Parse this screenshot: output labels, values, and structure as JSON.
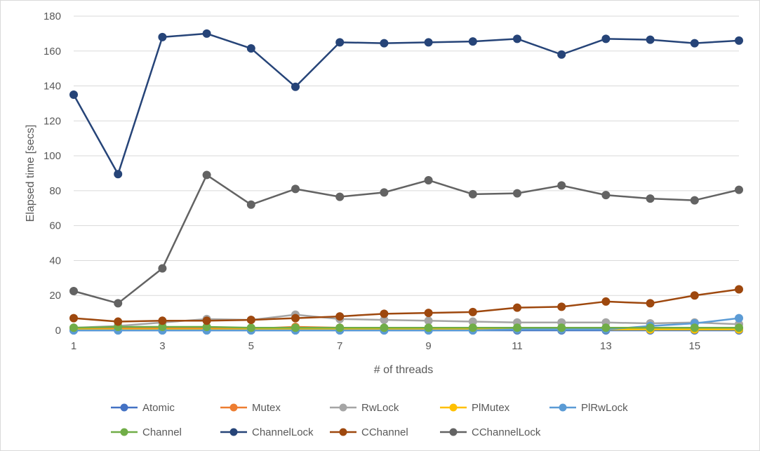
{
  "chart_data": {
    "type": "line",
    "title": "",
    "xlabel": "# of threads",
    "ylabel": "Elapsed time [secs]",
    "xlim": [
      1,
      16
    ],
    "ylim": [
      0,
      180
    ],
    "x_ticks": [
      1,
      3,
      5,
      7,
      9,
      11,
      13,
      15
    ],
    "y_ticks": [
      0,
      20,
      40,
      60,
      80,
      100,
      120,
      140,
      160,
      180
    ],
    "grid": "horizontal",
    "legend_position": "bottom",
    "x": [
      1,
      2,
      3,
      4,
      5,
      6,
      7,
      8,
      9,
      10,
      11,
      12,
      13,
      14,
      15,
      16
    ],
    "series": [
      {
        "name": "Atomic",
        "color": "#4472c4",
        "values": [
          0,
          0,
          0,
          0,
          0,
          0,
          0,
          0,
          0,
          0,
          0,
          0,
          0,
          0,
          0,
          0
        ]
      },
      {
        "name": "Mutex",
        "color": "#ed7d31",
        "values": [
          1,
          1.5,
          1.5,
          1.5,
          1,
          2,
          1.5,
          1,
          1,
          1,
          1,
          1,
          1,
          1,
          1,
          1
        ]
      },
      {
        "name": "RwLock",
        "color": "#a5a5a5",
        "values": [
          1.5,
          2.5,
          4.5,
          6.5,
          6,
          9,
          6.5,
          6,
          5.5,
          5,
          4.5,
          4.5,
          4.5,
          4,
          4.5,
          3.5
        ]
      },
      {
        "name": "PlMutex",
        "color": "#ffc000",
        "values": [
          0.5,
          0.5,
          0.5,
          0.5,
          0.5,
          0.5,
          0.5,
          0.5,
          0.5,
          0.5,
          0.5,
          0.5,
          0.5,
          0.5,
          0.5,
          0.5
        ]
      },
      {
        "name": "PlRwLock",
        "color": "#5b9bd5",
        "values": [
          0,
          0,
          0,
          0,
          0,
          0,
          0,
          0,
          0,
          0,
          0.5,
          0.5,
          0.5,
          2.5,
          4,
          7
        ]
      },
      {
        "name": "Channel",
        "color": "#70ad47",
        "values": [
          1.5,
          2,
          2,
          2,
          1.5,
          1.5,
          1.5,
          1.5,
          1.5,
          1.5,
          1.5,
          1.5,
          1.5,
          1.5,
          1.5,
          1.5
        ]
      },
      {
        "name": "ChannelLock",
        "color": "#264478",
        "values": [
          135,
          89.5,
          168,
          170,
          161.5,
          139.5,
          165,
          164.5,
          165,
          165.5,
          167,
          158,
          167,
          166.5,
          164.5,
          166
        ]
      },
      {
        "name": "CChannel",
        "color": "#9e480e",
        "values": [
          7,
          5,
          5.5,
          5.5,
          6,
          7,
          8,
          9.5,
          10,
          10.5,
          13,
          13.5,
          16.5,
          15.5,
          20,
          23.5
        ]
      },
      {
        "name": "CChannelLock",
        "color": "#636363",
        "values": [
          22.5,
          15.5,
          35.5,
          89,
          72,
          81,
          76.5,
          79,
          86,
          78,
          78.5,
          83,
          77.5,
          75.5,
          74.5,
          80.5
        ]
      }
    ]
  }
}
